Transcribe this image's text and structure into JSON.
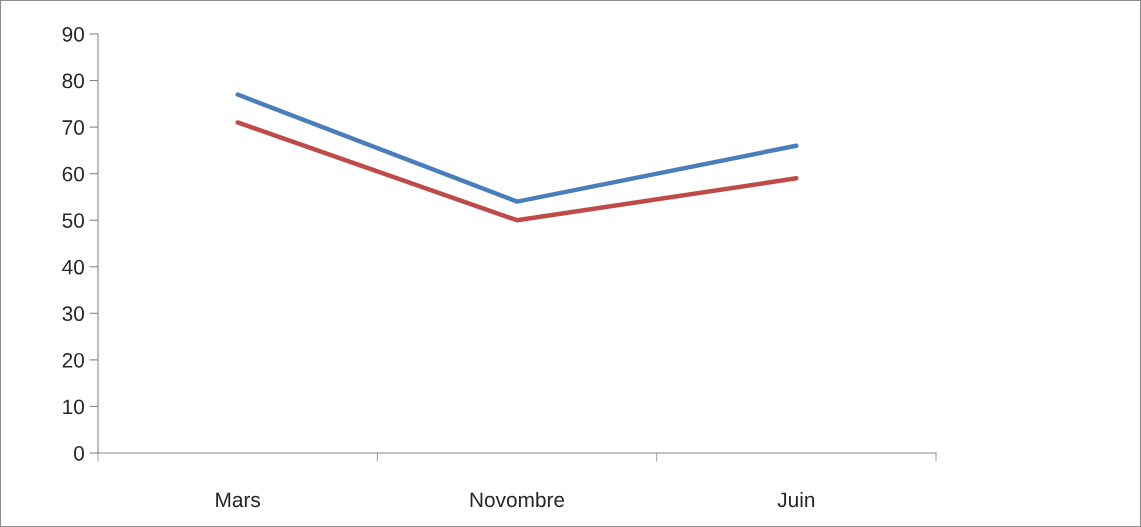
{
  "chart_data": {
    "type": "line",
    "categories": [
      "Mars",
      "Novombre",
      "Juin"
    ],
    "series": [
      {
        "color": "#4a7ebb",
        "values": [
          77,
          54,
          66
        ]
      },
      {
        "color": "#be4b48",
        "values": [
          71,
          50,
          59
        ]
      }
    ],
    "ylim": [
      0,
      90
    ],
    "yticks": [
      0,
      10,
      20,
      30,
      40,
      50,
      60,
      70,
      80,
      90
    ],
    "grid": false,
    "marker": "none",
    "line_style": "solid"
  }
}
